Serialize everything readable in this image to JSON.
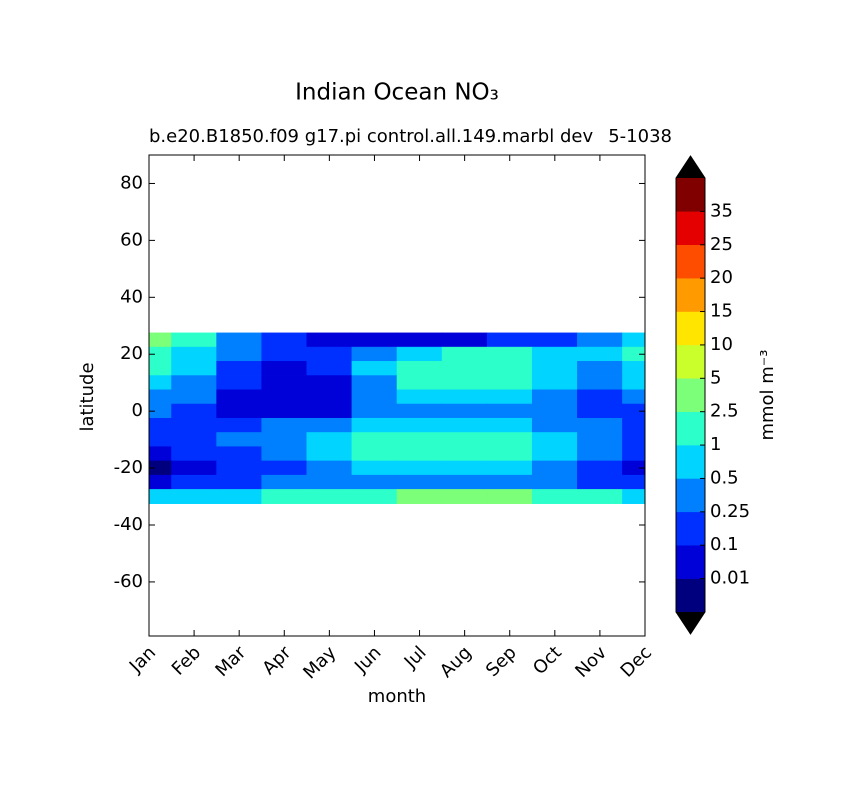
{
  "chart_data": {
    "type": "contourf",
    "title": "Indian Ocean NO₃",
    "subtitle": "b.e20.B1850.f09 g17.pi control.all.149.marbl dev",
    "subtitle_right": "5-1038",
    "xlabel": "month",
    "ylabel": "latitude",
    "colorbar_label": "mmol m⁻³",
    "categories": [
      "Jan",
      "Feb",
      "Mar",
      "Apr",
      "May",
      "Jun",
      "Jul",
      "Aug",
      "Sep",
      "Oct",
      "Nov",
      "Dec"
    ],
    "ylim": [
      -79,
      90
    ],
    "yticks": [
      80,
      60,
      40,
      20,
      0,
      -20,
      -40,
      -60
    ],
    "lat": [
      25,
      20,
      15,
      10,
      5,
      0,
      -5,
      -10,
      -15,
      -20,
      -25,
      -30
    ],
    "z": [
      [
        3,
        1,
        0.4,
        0.2,
        0.05,
        0.05,
        0.05,
        0.05,
        0.1,
        0.2,
        0.4,
        0.7
      ],
      [
        1.5,
        0.8,
        0.3,
        0.1,
        0.1,
        0.4,
        0.8,
        1.5,
        1.5,
        0.8,
        0.7,
        1.5
      ],
      [
        1.5,
        0.6,
        0.2,
        0.08,
        0.1,
        0.6,
        1.5,
        1.5,
        1.5,
        0.6,
        0.4,
        0.8
      ],
      [
        0.8,
        0.4,
        0.2,
        0.05,
        0.08,
        0.4,
        1.5,
        1.5,
        1.5,
        0.6,
        0.3,
        0.6
      ],
      [
        0.4,
        0.3,
        0.08,
        0.05,
        0.08,
        0.3,
        0.6,
        0.6,
        0.6,
        0.4,
        0.2,
        0.3
      ],
      [
        0.3,
        0.2,
        0.05,
        0.05,
        0.08,
        0.3,
        0.4,
        0.4,
        0.4,
        0.3,
        0.2,
        0.2
      ],
      [
        0.2,
        0.2,
        0.2,
        0.3,
        0.4,
        0.6,
        0.8,
        0.8,
        0.6,
        0.4,
        0.3,
        0.2
      ],
      [
        0.1,
        0.15,
        0.3,
        0.4,
        0.8,
        1.5,
        1.5,
        1.5,
        1.5,
        0.8,
        0.3,
        0.2
      ],
      [
        0.05,
        0.1,
        0.2,
        0.3,
        0.6,
        1.5,
        1.5,
        1.5,
        1.5,
        0.6,
        0.3,
        0.1
      ],
      [
        0.005,
        0.05,
        0.15,
        0.2,
        0.3,
        0.6,
        0.8,
        0.8,
        0.6,
        0.3,
        0.1,
        0.05
      ],
      [
        0.05,
        0.1,
        0.2,
        0.3,
        0.4,
        0.4,
        0.4,
        0.4,
        0.4,
        0.3,
        0.2,
        0.1
      ],
      [
        0.6,
        0.8,
        0.8,
        1,
        1.5,
        2,
        3,
        3,
        3,
        2,
        1,
        0.8
      ]
    ],
    "levels": [
      0.01,
      0.1,
      0.25,
      0.5,
      1,
      2.5,
      5,
      10,
      15,
      20,
      25,
      35
    ],
    "colors": [
      "#00007f",
      "#0000d8",
      "#0030ff",
      "#0080ff",
      "#00d4ff",
      "#2cffca",
      "#7cff79",
      "#caff2c",
      "#ffe500",
      "#ff9a00",
      "#ff4d00",
      "#e40000",
      "#800000"
    ],
    "extend_color": "#000000"
  }
}
